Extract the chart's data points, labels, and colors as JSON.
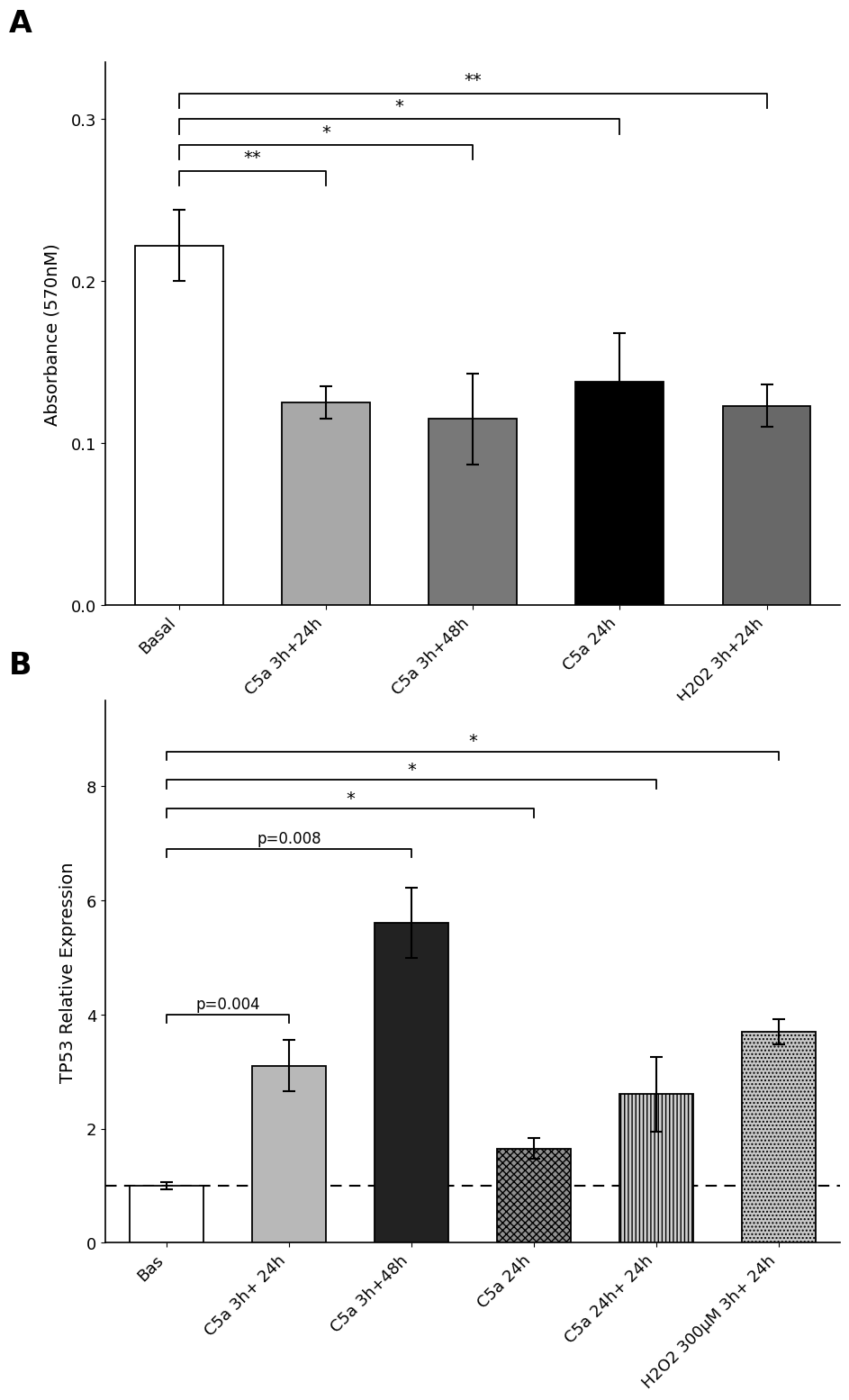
{
  "panel_A": {
    "categories": [
      "Basal",
      "C5a 3h+24h",
      "C5a 3h+48h",
      "C5a 24h",
      "H202 3h+24h"
    ],
    "values": [
      0.222,
      0.125,
      0.115,
      0.138,
      0.123
    ],
    "errors": [
      0.022,
      0.01,
      0.028,
      0.03,
      0.013
    ],
    "colors": [
      "white",
      "#a8a8a8",
      "#787878",
      "black",
      "#686868"
    ],
    "hatch": [
      "",
      "",
      "",
      "|||||||",
      ""
    ],
    "hatch_colors": [
      "black",
      "black",
      "black",
      "white",
      "black"
    ],
    "edgecolors": [
      "black",
      "black",
      "black",
      "black",
      "black"
    ],
    "ylabel": "Absorbance (570nM)",
    "ylim": [
      0,
      0.335
    ],
    "yticks": [
      0.0,
      0.1,
      0.2,
      0.3
    ]
  },
  "panel_B": {
    "categories": [
      "Bas",
      "C5a 3h+ 24h",
      "C5a 3h+48h",
      "C5a 24h",
      "C5a 24h+ 24h",
      "H2O2 300μM 3h+ 24h"
    ],
    "values": [
      1.0,
      3.1,
      5.6,
      1.65,
      2.6,
      3.7
    ],
    "errors": [
      0.06,
      0.45,
      0.62,
      0.18,
      0.65,
      0.22
    ],
    "colors": [
      "white",
      "#b8b8b8",
      "#222222",
      "#909090",
      "#d0d0d0",
      "#c8c8c8"
    ],
    "hatch": [
      "",
      "",
      "",
      "xxxx",
      "||||",
      "...."
    ],
    "hatch_colors": [
      "black",
      "black",
      "black",
      "black",
      "black",
      "black"
    ],
    "edgecolors": [
      "black",
      "black",
      "black",
      "black",
      "black",
      "black"
    ],
    "ylabel": "TP53 Relative Expression",
    "ylim": [
      0,
      9.5
    ],
    "yticks": [
      0,
      2,
      4,
      6,
      8
    ],
    "dashed_line_y": 1.0
  },
  "background_color": "white"
}
